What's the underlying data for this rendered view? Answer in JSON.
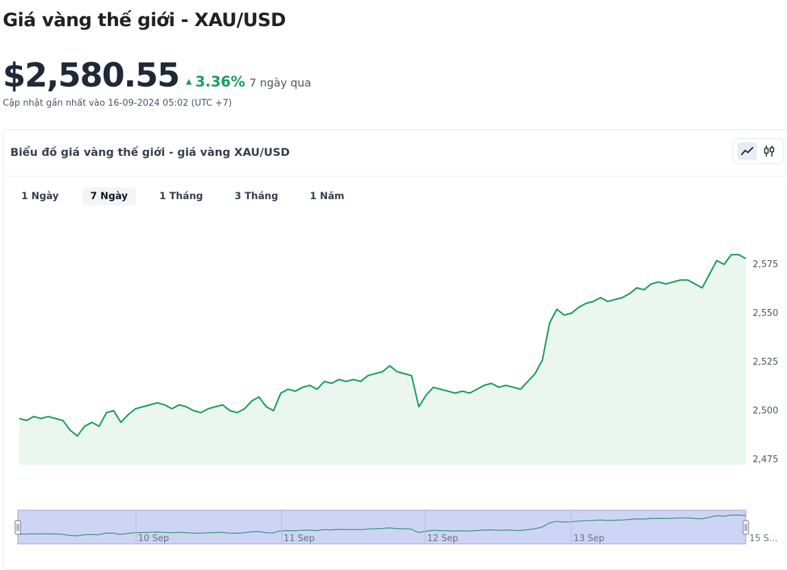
{
  "header": {
    "title": "Giá vàng thế giới - XAU/USD",
    "price": "$2,580.55",
    "change_pct": "3.36%",
    "change_period": "7 ngày qua",
    "updated": "Cập nhật gần nhất vào 16-09-2024 05:02 (UTC +7)",
    "change_direction_icon": "caret-up-icon",
    "up_color": "#1a9e5a"
  },
  "card": {
    "title": "Biểu đồ giá vàng thế giới - giá vàng XAU/USD",
    "chart_type_buttons": [
      {
        "name": "line-chart-icon",
        "active": true
      },
      {
        "name": "candlestick-icon",
        "active": false
      }
    ]
  },
  "tabs": [
    {
      "label": "1 Ngày",
      "active": false
    },
    {
      "label": "7 Ngày",
      "active": true
    },
    {
      "label": "1 Tháng",
      "active": false
    },
    {
      "label": "3 Tháng",
      "active": false
    },
    {
      "label": "1 Năm",
      "active": false
    }
  ],
  "chart_data": {
    "type": "area",
    "title": "",
    "xlabel": "",
    "ylabel": "",
    "ylim": [
      2470,
      2583
    ],
    "yticks": [
      2475,
      2500,
      2525,
      2550,
      2575
    ],
    "ytick_labels": [
      "2,475",
      "2,500",
      "2,525",
      "2,550",
      "2,575"
    ],
    "xlim": [
      0,
      100
    ],
    "line_color": "#1a9e5a",
    "fill_color": "#eaf6ef",
    "grid": false,
    "series": [
      {
        "x": [
          0,
          1,
          2,
          3,
          4,
          5,
          6,
          7,
          8,
          9,
          10,
          11,
          12,
          13,
          14,
          15,
          16,
          17,
          18,
          19,
          20,
          21,
          22,
          23,
          24,
          25,
          26,
          27,
          28,
          29,
          30,
          31,
          32,
          33,
          34,
          35,
          36,
          37,
          38,
          39,
          40,
          41,
          42,
          43,
          44,
          45,
          46,
          47,
          48,
          49,
          50,
          51,
          52,
          53,
          54,
          55,
          56,
          57,
          58,
          59,
          60,
          61,
          62,
          63,
          64,
          65,
          66,
          67,
          68,
          69,
          70,
          71,
          72,
          73,
          74,
          75,
          76,
          77,
          78,
          79,
          80,
          81,
          82,
          83,
          84,
          85,
          86,
          87,
          88,
          89,
          90,
          91,
          92,
          93,
          94,
          95,
          96,
          97,
          98,
          99,
          100
        ],
        "y": [
          2496,
          2495,
          2497,
          2496,
          2497,
          2496,
          2495,
          2490,
          2487,
          2492,
          2494,
          2492,
          2499,
          2500,
          2494,
          2498,
          2501,
          2502,
          2503,
          2504,
          2503,
          2501,
          2503,
          2502,
          2500,
          2499,
          2501,
          2502,
          2503,
          2500,
          2499,
          2501,
          2505,
          2507,
          2502,
          2500,
          2509,
          2511,
          2510,
          2512,
          2513,
          2511,
          2515,
          2514,
          2516,
          2515,
          2516,
          2515,
          2518,
          2519,
          2520,
          2523,
          2520,
          2519,
          2518,
          2502,
          2508,
          2512,
          2511,
          2510,
          2509,
          2510,
          2509,
          2511,
          2513,
          2514,
          2512,
          2513,
          2512,
          2511,
          2515,
          2519,
          2526,
          2545,
          2552,
          2549,
          2550,
          2553,
          2555,
          2556,
          2558,
          2556,
          2557,
          2558,
          2560,
          2563,
          2562,
          2565,
          2566,
          2565,
          2566,
          2567,
          2567,
          2565,
          2563,
          2570,
          2577,
          2575,
          2580,
          2580,
          2578
        ]
      }
    ],
    "navigator_labels": [
      "10 Sep",
      "11 Sep",
      "12 Sep",
      "13 Sep",
      "15 S..."
    ]
  }
}
